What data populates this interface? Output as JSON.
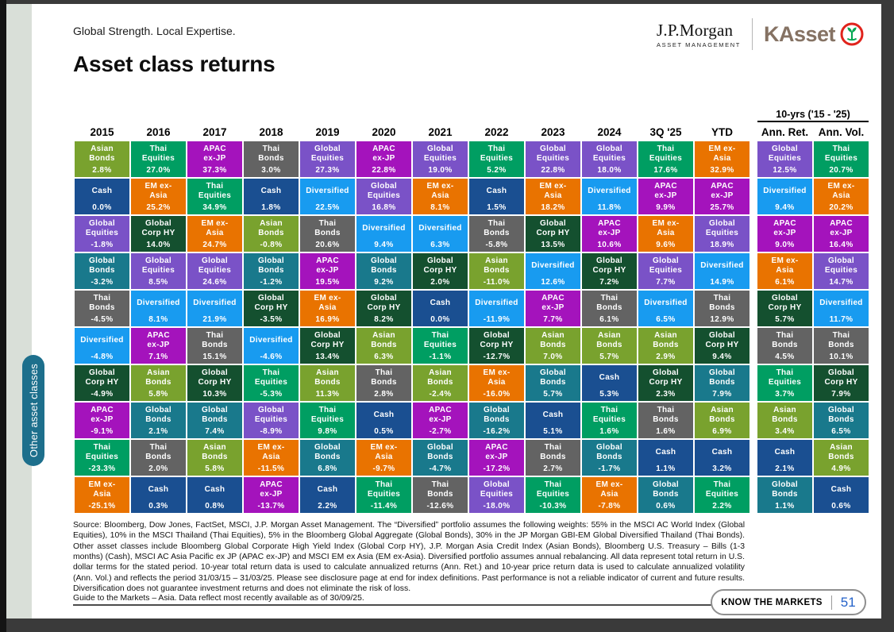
{
  "header": {
    "tagline": "Global Strength.  Local Expertise.",
    "jpmorgan_logo": {
      "name": "J.P.Morgan",
      "subtitle": "ASSET MANAGEMENT"
    },
    "kasset_logo": {
      "name": "KAsset",
      "icon": "sprout-in-red-circle-icon"
    }
  },
  "title": "Asset class returns",
  "sidebar": {
    "tab_label": "Other asset classes"
  },
  "colors": {
    "tab_teal": "#1d6f8c",
    "sage_strip": "#d9dfd8",
    "frame_dark": "#3a3a3a",
    "badge_page_blue": "#2462c9",
    "kasset_brown": "#857263",
    "kasset_red": "#e0231c",
    "kasset_green": "#00a651"
  },
  "chart_data": {
    "type": "table",
    "title": "Asset class returns",
    "ten_year_header": "10-yrs ('15 - '25)",
    "assets": {
      "asian_bonds": {
        "label": "Asian\nBonds",
        "color": "#79A22E"
      },
      "thai_equities": {
        "label": "Thai\nEquities",
        "color": "#009E62"
      },
      "apac_ex_jp": {
        "label": "APAC\nex-JP",
        "color": "#A413BC"
      },
      "thai_bonds": {
        "label": "Thai\nBonds",
        "color": "#636363"
      },
      "global_equities": {
        "label": "Global\nEquities",
        "color": "#7A52C7"
      },
      "cash": {
        "label": "Cash",
        "color": "#1A4F91"
      },
      "em_ex_asia": {
        "label": "EM ex-\nAsia",
        "color": "#E97300"
      },
      "diversified": {
        "label": "Diversified",
        "color": "#189BF0"
      },
      "global_corp_hy": {
        "label": "Global\nCorp HY",
        "color": "#14502F"
      },
      "global_bonds": {
        "label": "Global\nBonds",
        "color": "#19798C"
      }
    },
    "columns": [
      {
        "label": "2015",
        "cells": [
          {
            "a": "asian_bonds",
            "v": "2.8%"
          },
          {
            "a": "cash",
            "v": "0.0%"
          },
          {
            "a": "global_equities",
            "v": "-1.8%"
          },
          {
            "a": "global_bonds",
            "v": "-3.2%"
          },
          {
            "a": "thai_bonds",
            "v": "-4.5%"
          },
          {
            "a": "diversified",
            "v": "-4.8%"
          },
          {
            "a": "global_corp_hy",
            "v": "-4.9%"
          },
          {
            "a": "apac_ex_jp",
            "v": "-9.1%"
          },
          {
            "a": "thai_equities",
            "v": "-23.3%"
          },
          {
            "a": "em_ex_asia",
            "v": "-25.1%"
          }
        ]
      },
      {
        "label": "2016",
        "cells": [
          {
            "a": "thai_equities",
            "v": "27.0%"
          },
          {
            "a": "em_ex_asia",
            "v": "25.2%"
          },
          {
            "a": "global_corp_hy",
            "v": "14.0%"
          },
          {
            "a": "global_equities",
            "v": "8.5%"
          },
          {
            "a": "diversified",
            "v": "8.1%"
          },
          {
            "a": "apac_ex_jp",
            "v": "7.1%"
          },
          {
            "a": "asian_bonds",
            "v": "5.8%"
          },
          {
            "a": "global_bonds",
            "v": "2.1%"
          },
          {
            "a": "thai_bonds",
            "v": "2.0%"
          },
          {
            "a": "cash",
            "v": "0.3%"
          }
        ]
      },
      {
        "label": "2017",
        "cells": [
          {
            "a": "apac_ex_jp",
            "v": "37.3%"
          },
          {
            "a": "thai_equities",
            "v": "34.9%"
          },
          {
            "a": "em_ex_asia",
            "v": "24.7%"
          },
          {
            "a": "global_equities",
            "v": "24.6%"
          },
          {
            "a": "diversified",
            "v": "21.9%"
          },
          {
            "a": "thai_bonds",
            "v": "15.1%"
          },
          {
            "a": "global_corp_hy",
            "v": "10.3%"
          },
          {
            "a": "global_bonds",
            "v": "7.4%"
          },
          {
            "a": "asian_bonds",
            "v": "5.8%"
          },
          {
            "a": "cash",
            "v": "0.8%"
          }
        ]
      },
      {
        "label": "2018",
        "cells": [
          {
            "a": "thai_bonds",
            "v": "3.0%"
          },
          {
            "a": "cash",
            "v": "1.8%"
          },
          {
            "a": "asian_bonds",
            "v": "-0.8%"
          },
          {
            "a": "global_bonds",
            "v": "-1.2%"
          },
          {
            "a": "global_corp_hy",
            "v": "-3.5%"
          },
          {
            "a": "diversified",
            "v": "-4.6%"
          },
          {
            "a": "thai_equities",
            "v": "-5.3%"
          },
          {
            "a": "global_equities",
            "v": "-8.9%"
          },
          {
            "a": "em_ex_asia",
            "v": "-11.5%"
          },
          {
            "a": "apac_ex_jp",
            "v": "-13.7%"
          }
        ]
      },
      {
        "label": "2019",
        "cells": [
          {
            "a": "global_equities",
            "v": "27.3%"
          },
          {
            "a": "diversified",
            "v": "22.5%"
          },
          {
            "a": "thai_bonds",
            "v": "20.6%"
          },
          {
            "a": "apac_ex_jp",
            "v": "19.5%"
          },
          {
            "a": "em_ex_asia",
            "v": "16.9%"
          },
          {
            "a": "global_corp_hy",
            "v": "13.4%"
          },
          {
            "a": "asian_bonds",
            "v": "11.3%"
          },
          {
            "a": "thai_equities",
            "v": "9.8%"
          },
          {
            "a": "global_bonds",
            "v": "6.8%"
          },
          {
            "a": "cash",
            "v": "2.2%"
          }
        ]
      },
      {
        "label": "2020",
        "cells": [
          {
            "a": "apac_ex_jp",
            "v": "22.8%"
          },
          {
            "a": "global_equities",
            "v": "16.8%"
          },
          {
            "a": "diversified",
            "v": "9.4%"
          },
          {
            "a": "global_bonds",
            "v": "9.2%"
          },
          {
            "a": "global_corp_hy",
            "v": "8.2%"
          },
          {
            "a": "asian_bonds",
            "v": "6.3%"
          },
          {
            "a": "thai_bonds",
            "v": "2.8%"
          },
          {
            "a": "cash",
            "v": "0.5%"
          },
          {
            "a": "em_ex_asia",
            "v": "-9.7%"
          },
          {
            "a": "thai_equities",
            "v": "-11.4%"
          }
        ]
      },
      {
        "label": "2021",
        "cells": [
          {
            "a": "global_equities",
            "v": "19.0%"
          },
          {
            "a": "em_ex_asia",
            "v": "8.1%"
          },
          {
            "a": "diversified",
            "v": "6.3%"
          },
          {
            "a": "global_corp_hy",
            "v": "2.0%"
          },
          {
            "a": "cash",
            "v": "0.0%"
          },
          {
            "a": "thai_equities",
            "v": "-1.1%"
          },
          {
            "a": "asian_bonds",
            "v": "-2.4%"
          },
          {
            "a": "apac_ex_jp",
            "v": "-2.7%"
          },
          {
            "a": "global_bonds",
            "v": "-4.7%"
          },
          {
            "a": "thai_bonds",
            "v": "-12.6%"
          }
        ]
      },
      {
        "label": "2022",
        "cells": [
          {
            "a": "thai_equities",
            "v": "5.2%"
          },
          {
            "a": "cash",
            "v": "1.5%"
          },
          {
            "a": "thai_bonds",
            "v": "-5.8%"
          },
          {
            "a": "asian_bonds",
            "v": "-11.0%"
          },
          {
            "a": "diversified",
            "v": "-11.9%"
          },
          {
            "a": "global_corp_hy",
            "v": "-12.7%"
          },
          {
            "a": "em_ex_asia",
            "v": "-16.0%"
          },
          {
            "a": "global_bonds",
            "v": "-16.2%"
          },
          {
            "a": "apac_ex_jp",
            "v": "-17.2%"
          },
          {
            "a": "global_equities",
            "v": "-18.0%"
          }
        ]
      },
      {
        "label": "2023",
        "cells": [
          {
            "a": "global_equities",
            "v": "22.8%"
          },
          {
            "a": "em_ex_asia",
            "v": "18.2%"
          },
          {
            "a": "global_corp_hy",
            "v": "13.5%"
          },
          {
            "a": "diversified",
            "v": "12.6%"
          },
          {
            "a": "apac_ex_jp",
            "v": "7.7%"
          },
          {
            "a": "asian_bonds",
            "v": "7.0%"
          },
          {
            "a": "global_bonds",
            "v": "5.7%"
          },
          {
            "a": "cash",
            "v": "5.1%"
          },
          {
            "a": "thai_bonds",
            "v": "2.7%"
          },
          {
            "a": "thai_equities",
            "v": "-10.3%"
          }
        ]
      },
      {
        "label": "2024",
        "cells": [
          {
            "a": "global_equities",
            "v": "18.0%"
          },
          {
            "a": "diversified",
            "v": "11.8%"
          },
          {
            "a": "apac_ex_jp",
            "v": "10.6%"
          },
          {
            "a": "global_corp_hy",
            "v": "7.2%"
          },
          {
            "a": "thai_bonds",
            "v": "6.1%"
          },
          {
            "a": "asian_bonds",
            "v": "5.7%"
          },
          {
            "a": "cash",
            "v": "5.3%"
          },
          {
            "a": "thai_equities",
            "v": "1.6%"
          },
          {
            "a": "global_bonds",
            "v": "-1.7%"
          },
          {
            "a": "em_ex_asia",
            "v": "-7.8%"
          }
        ]
      },
      {
        "label": "3Q '25",
        "cells": [
          {
            "a": "thai_equities",
            "v": "17.6%"
          },
          {
            "a": "apac_ex_jp",
            "v": "9.9%"
          },
          {
            "a": "em_ex_asia",
            "v": "9.6%"
          },
          {
            "a": "global_equities",
            "v": "7.7%"
          },
          {
            "a": "diversified",
            "v": "6.5%"
          },
          {
            "a": "asian_bonds",
            "v": "2.9%"
          },
          {
            "a": "global_corp_hy",
            "v": "2.3%"
          },
          {
            "a": "thai_bonds",
            "v": "1.6%"
          },
          {
            "a": "cash",
            "v": "1.1%"
          },
          {
            "a": "global_bonds",
            "v": "0.6%"
          }
        ]
      },
      {
        "label": "YTD",
        "cells": [
          {
            "a": "em_ex_asia",
            "v": "32.9%"
          },
          {
            "a": "apac_ex_jp",
            "v": "25.7%"
          },
          {
            "a": "global_equities",
            "v": "18.9%"
          },
          {
            "a": "diversified",
            "v": "14.9%"
          },
          {
            "a": "thai_bonds",
            "v": "12.9%"
          },
          {
            "a": "global_corp_hy",
            "v": "9.4%"
          },
          {
            "a": "global_bonds",
            "v": "7.9%"
          },
          {
            "a": "asian_bonds",
            "v": "6.9%"
          },
          {
            "a": "cash",
            "v": "3.2%"
          },
          {
            "a": "thai_equities",
            "v": "2.2%"
          }
        ]
      },
      {
        "label": "Ann. Ret.",
        "cells": [
          {
            "a": "global_equities",
            "v": "12.5%"
          },
          {
            "a": "diversified",
            "v": "9.4%"
          },
          {
            "a": "apac_ex_jp",
            "v": "9.0%"
          },
          {
            "a": "em_ex_asia",
            "v": "6.1%"
          },
          {
            "a": "global_corp_hy",
            "v": "5.7%"
          },
          {
            "a": "thai_bonds",
            "v": "4.5%"
          },
          {
            "a": "thai_equities",
            "v": "3.7%"
          },
          {
            "a": "asian_bonds",
            "v": "3.4%"
          },
          {
            "a": "cash",
            "v": "2.1%"
          },
          {
            "a": "global_bonds",
            "v": "1.1%"
          }
        ]
      },
      {
        "label": "Ann. Vol.",
        "cells": [
          {
            "a": "thai_equities",
            "v": "20.7%"
          },
          {
            "a": "em_ex_asia",
            "v": "20.2%"
          },
          {
            "a": "apac_ex_jp",
            "v": "16.4%"
          },
          {
            "a": "global_equities",
            "v": "14.7%"
          },
          {
            "a": "diversified",
            "v": "11.7%"
          },
          {
            "a": "thai_bonds",
            "v": "10.1%"
          },
          {
            "a": "global_corp_hy",
            "v": "7.9%"
          },
          {
            "a": "global_bonds",
            "v": "6.5%"
          },
          {
            "a": "asian_bonds",
            "v": "4.9%"
          },
          {
            "a": "cash",
            "v": "0.6%"
          }
        ]
      }
    ]
  },
  "footer": {
    "source": "Source: Bloomberg, Dow Jones, FactSet, MSCI, J.P. Morgan Asset Management. The “Diversified” portfolio assumes the following weights: 55% in the MSCI AC World Index (Global Equities), 10% in the MSCI Thailand (Thai Equities), 5% in the Bloomberg Global Aggregate (Global Bonds), 30% in the JP Morgan GBI-EM Global Diversified Thailand (Thai Bonds). Other asset classes include Bloomberg Global Corporate High Yield Index (Global Corp HY), J.P. Morgan Asia Credit Index (Asian Bonds), Bloomberg U.S. Treasury – Bills (1-3 months) (Cash), MSCI AC Asia Pacific ex JP (APAC ex-JP) and MSCI EM ex Asia (EM ex-Asia). Diversified portfolio assumes annual rebalancing. All data represent total return in U.S. dollar terms for the stated period. 10-year total return data is used to calculate annualized returns (Ann. Ret.) and 10-year price return data is used to calculate annualized volatility (Ann. Vol.) and reflects the period 31/03/15 – 31/03/25. Please see disclosure page at end for index definitions. Past performance is not a reliable indicator of current and future results. Diversification does not guarantee investment returns and does not eliminate the risk of loss.",
    "guide": "Guide to the Markets – Asia. Data reflect most recently available as of 30/09/25.",
    "badge_label": "KNOW THE MARKETS",
    "page_number": "51"
  }
}
